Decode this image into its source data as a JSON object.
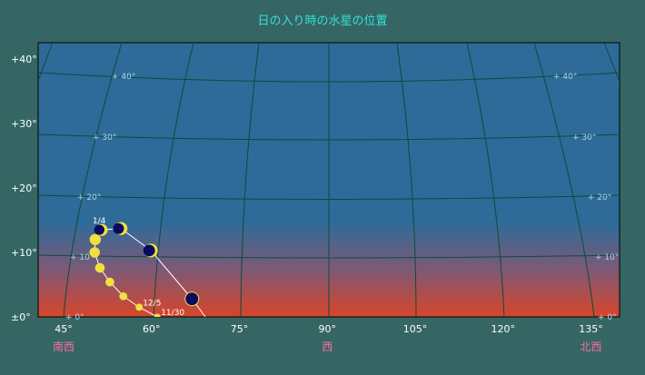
{
  "chart_data": {
    "type": "scatter",
    "title": "日の入り時の水星の位置",
    "xlim": [
      40.6,
      139.8
    ],
    "ylim": [
      0,
      42.5
    ],
    "x_ticks": [
      45,
      60,
      75,
      90,
      105,
      120,
      135
    ],
    "x_tick_labels": [
      "45°",
      "60°",
      "75°",
      "90°",
      "105°",
      "120°",
      "135°"
    ],
    "y_ticks": [
      0,
      10,
      20,
      30,
      40
    ],
    "y_tick_labels": [
      "±0°",
      "+10°",
      "+20°",
      "+30°",
      "+40°"
    ],
    "direction_labels": [
      {
        "az": 45,
        "text": "南西"
      },
      {
        "az": 90,
        "text": "西"
      },
      {
        "az": 135,
        "text": "北西"
      }
    ],
    "grid_labels": [
      "+ 40°",
      "+ 30°",
      "+ 20°",
      "+ 10°",
      "+ 0°"
    ],
    "grid": true,
    "series": [
      {
        "points": [
          {
            "az": 61.0,
            "alt": 0.0,
            "label": "11/30",
            "phase": "full"
          },
          {
            "az": 57.9,
            "alt": 1.5,
            "label": "12/5",
            "phase": "full"
          },
          {
            "az": 55.2,
            "alt": 3.2,
            "phase": "full"
          },
          {
            "az": 52.9,
            "alt": 5.4,
            "phase": "full"
          },
          {
            "az": 51.2,
            "alt": 7.6,
            "phase": "full"
          },
          {
            "az": 50.3,
            "alt": 10.0,
            "phase": "full"
          },
          {
            "az": 50.4,
            "alt": 12.0,
            "phase": "full"
          },
          {
            "az": 51.5,
            "alt": 13.5,
            "label": "1/4",
            "phase": "half"
          },
          {
            "az": 54.8,
            "alt": 13.7,
            "phase": "half"
          },
          {
            "az": 59.9,
            "alt": 10.3,
            "phase": "crescent"
          },
          {
            "az": 66.9,
            "alt": 2.8,
            "phase": "new"
          },
          {
            "az": 69.2,
            "alt": 0.0,
            "phase": "none"
          }
        ]
      }
    ],
    "colors": {
      "background": "#356664",
      "sky_top": "#2f6b98",
      "sky_horizon": "#d8452a",
      "title": "#33e0d8",
      "grid": "#0f4a3a",
      "grid_label": "#a8d8e8",
      "direction": "#ff6aa0",
      "planet_lit": "#f0e040",
      "planet_dark": "#0a0a60",
      "track": "#ffffff"
    }
  }
}
